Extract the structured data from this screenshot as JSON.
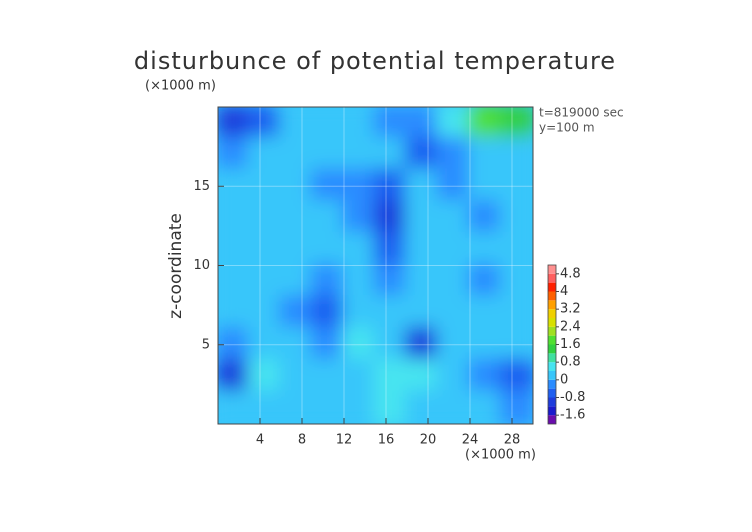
{
  "chart_data": {
    "type": "heatmap",
    "title": "disturbunce of potential temperature",
    "y_unit": "(×1000 m)",
    "x_unit": "(×1000 m)",
    "ylabel": "z-coordinate",
    "annotations": [
      "t=819000 sec",
      "y=100 m"
    ],
    "xlim": [
      0,
      30
    ],
    "ylim": [
      0,
      20
    ],
    "xticks": [
      4,
      8,
      12,
      16,
      20,
      24,
      28
    ],
    "yticks": [
      5,
      10,
      15
    ],
    "grid": true,
    "z": [
      [
        -0.8,
        -0.6,
        0,
        0.2,
        0,
        -0.4,
        -0.4,
        0.8,
        1.6,
        1.2
      ],
      [
        -0.2,
        0.2,
        0.2,
        0,
        0,
        0,
        -0.6,
        -0.2,
        0.4,
        0.2
      ],
      [
        0,
        0.2,
        0,
        -0.2,
        -0.4,
        -0.6,
        0.2,
        -0.4,
        0,
        0.2
      ],
      [
        0,
        0,
        0.2,
        0,
        -0.2,
        -0.8,
        0.4,
        0,
        -0.2,
        0
      ],
      [
        0,
        0.2,
        0,
        0,
        0,
        -0.6,
        0.4,
        0,
        0,
        0.2
      ],
      [
        0,
        0,
        0,
        -0.2,
        0,
        -0.4,
        0.2,
        0,
        -0.2,
        0
      ],
      [
        0.2,
        0,
        -0.4,
        -0.6,
        0,
        0,
        0,
        0,
        0,
        0.2
      ],
      [
        -0.2,
        0.4,
        0,
        -0.2,
        0.6,
        0.2,
        -1.2,
        0,
        0,
        0.4
      ],
      [
        -0.8,
        0.8,
        0.2,
        0,
        0.2,
        0.6,
        0.8,
        0,
        -0.4,
        -0.6
      ],
      [
        0,
        0,
        0.2,
        0.2,
        0.2,
        0.8,
        0.2,
        0.2,
        0,
        -0.4
      ]
    ],
    "clim": [
      -2,
      5.2
    ],
    "cticks": [
      -1.6,
      -0.8,
      0,
      0.8,
      1.6,
      2.4,
      3.2,
      4,
      4.8
    ],
    "colors": [
      "#6a0dad",
      "#1a1acc",
      "#1e3cdc",
      "#1f5ff0",
      "#2a8cff",
      "#38c6fa",
      "#46e4f0",
      "#40e0a0",
      "#30d040",
      "#50e030",
      "#a0e020",
      "#d8e000",
      "#f0d000",
      "#ffa000",
      "#ff6000",
      "#ff2000",
      "#ff6060",
      "#ff9090"
    ]
  }
}
